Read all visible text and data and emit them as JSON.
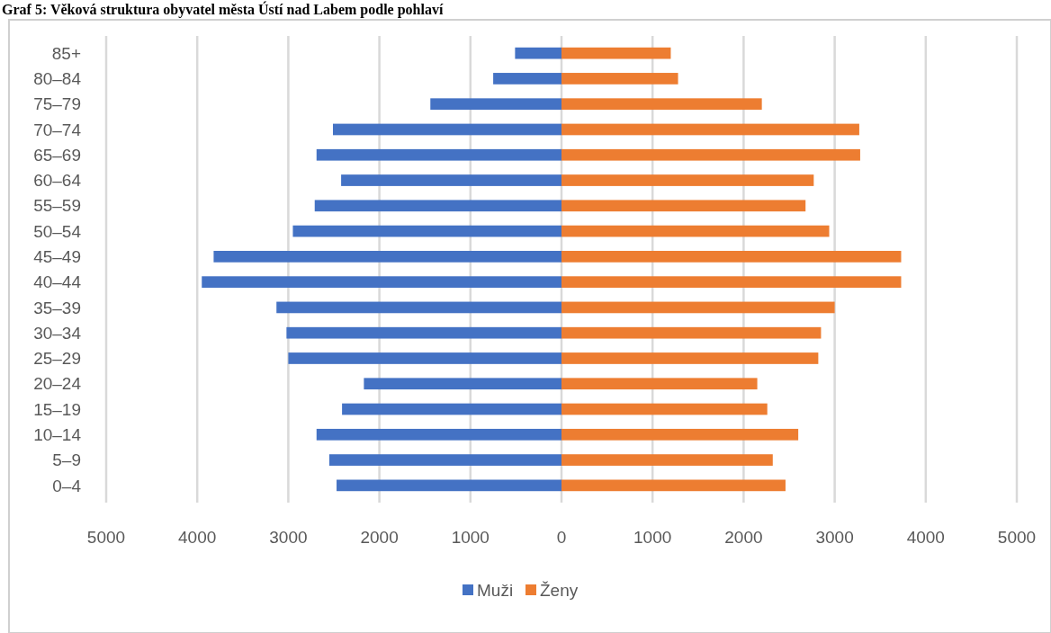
{
  "chart_data": {
    "type": "bar",
    "orientation": "horizontal",
    "stacked": true,
    "title": "Graf 5: Věková struktura obyvatel města Ústí nad Labem podle pohlaví",
    "categories": [
      "85+",
      "80–84",
      "75–79",
      "70–74",
      "65–69",
      "60–64",
      "55–59",
      "50–54",
      "45–49",
      "40–44",
      "35–39",
      "30–34",
      "25–29",
      "20–24",
      "15–19",
      "10–14",
      "5–9",
      "0–4"
    ],
    "series": [
      {
        "name": "Muži",
        "color": "#4472c4",
        "values": [
          -510,
          -750,
          -1440,
          -2510,
          -2690,
          -2420,
          -2710,
          -2950,
          -3820,
          -3950,
          -3130,
          -3020,
          -3000,
          -2170,
          -2410,
          -2690,
          -2550,
          -2470
        ]
      },
      {
        "name": "Ženy",
        "color": "#ed7d31",
        "values": [
          1200,
          1280,
          2200,
          3270,
          3280,
          2770,
          2680,
          2940,
          3730,
          3730,
          3000,
          2850,
          2820,
          2150,
          2260,
          2600,
          2320,
          2460
        ]
      }
    ],
    "xlim": [
      -5000,
      5000
    ],
    "xticks": [
      {
        "value": -5000,
        "label": "5000"
      },
      {
        "value": -4000,
        "label": "4000"
      },
      {
        "value": -3000,
        "label": "3000"
      },
      {
        "value": -2000,
        "label": "2000"
      },
      {
        "value": -1000,
        "label": "1000"
      },
      0,
      1000,
      2000,
      3000,
      4000,
      5000
    ],
    "grid": "x",
    "legend": "bottom"
  }
}
